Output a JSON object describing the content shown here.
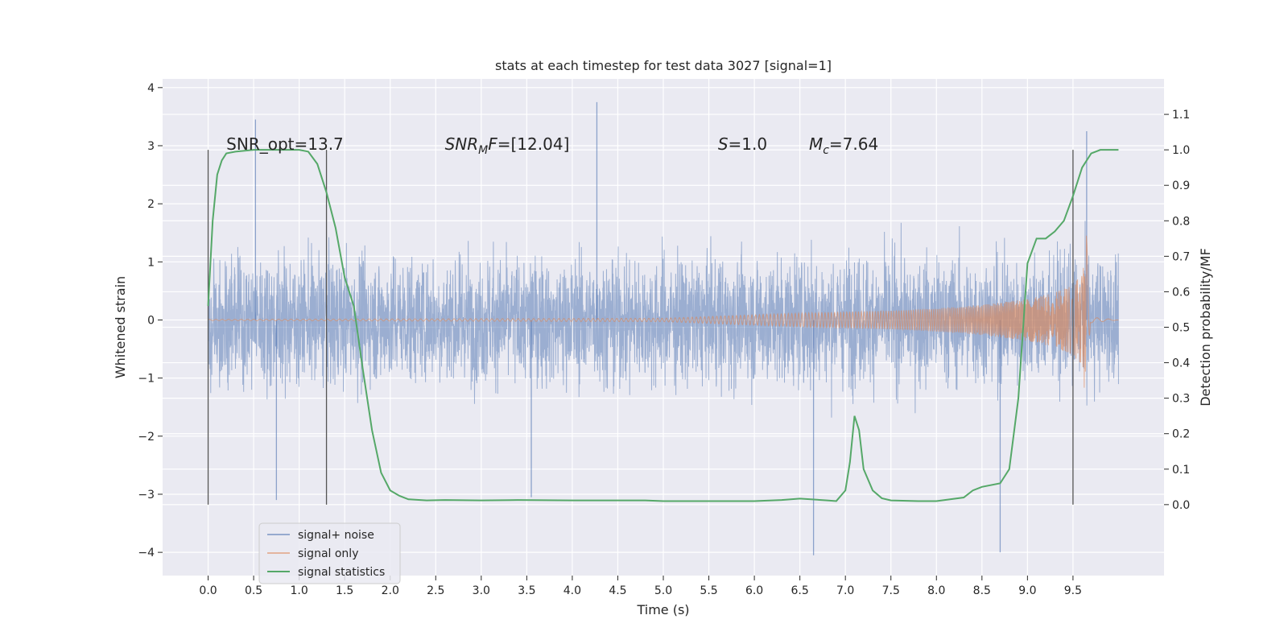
{
  "chart_data": {
    "type": "line",
    "title": "stats at each timestep for test data 3027 [signal=1]",
    "xlabel": "Time (s)",
    "ylabel": "Whitened strain",
    "ylabel_right": "Detection probability/MF",
    "xlim": [
      -0.5,
      10.5
    ],
    "ylim": [
      -4.4,
      4.15
    ],
    "ylim_right": [
      -0.2,
      1.2
    ],
    "x_ticks": [
      "0.0",
      "0.5",
      "1.0",
      "1.5",
      "2.0",
      "2.5",
      "3.0",
      "3.5",
      "4.0",
      "4.5",
      "5.0",
      "5.5",
      "6.0",
      "6.5",
      "7.0",
      "7.5",
      "8.0",
      "8.5",
      "9.0",
      "9.5"
    ],
    "y_ticks": [
      "−4",
      "−3",
      "−2",
      "−1",
      "0",
      "1",
      "2",
      "3",
      "4"
    ],
    "y_ticks_right": [
      "0.0",
      "0.1",
      "0.2",
      "0.3",
      "0.4",
      "0.5",
      "0.6",
      "0.7",
      "0.8",
      "0.9",
      "1.0",
      "1.1"
    ],
    "annotations": [
      {
        "text": "SNR_opt=13.7",
        "x": 0.2,
        "y": 3.0
      },
      {
        "text": "SNR_MF=[12.04]",
        "x": 2.6,
        "y": 3.0
      },
      {
        "text": "S=1.0",
        "x": 5.6,
        "y": 3.0
      },
      {
        "text": "M_c=7.64",
        "x": 6.6,
        "y": 3.0
      }
    ],
    "vertical_markers": [
      0.0,
      1.3,
      9.5
    ],
    "legend": {
      "position": "lower-left",
      "entries": [
        "signal+ noise",
        "signal only",
        "signal statistics"
      ]
    },
    "grid": true,
    "series": [
      {
        "name": "signal+ noise",
        "color": "#4c72b0",
        "kind": "noise",
        "x_range": [
          0.0,
          10.0
        ],
        "typical_amplitude": 1.6,
        "notable_peaks": [
          {
            "x": 0.52,
            "y": 3.45
          },
          {
            "x": 4.27,
            "y": 3.75
          },
          {
            "x": 9.65,
            "y": 3.25
          },
          {
            "x": 6.65,
            "y": -4.05
          },
          {
            "x": 8.7,
            "y": -4.0
          },
          {
            "x": 0.75,
            "y": -3.1
          },
          {
            "x": 3.55,
            "y": -3.05
          }
        ]
      },
      {
        "name": "signal only",
        "color": "#dd8452",
        "kind": "chirp",
        "x_range": [
          0.0,
          10.0
        ],
        "envelope": [
          [
            0.0,
            0.01
          ],
          [
            5.0,
            0.03
          ],
          [
            5.5,
            0.06
          ],
          [
            6.0,
            0.09
          ],
          [
            6.5,
            0.12
          ],
          [
            7.0,
            0.14
          ],
          [
            7.5,
            0.16
          ],
          [
            8.0,
            0.2
          ],
          [
            8.5,
            0.26
          ],
          [
            9.0,
            0.36
          ],
          [
            9.3,
            0.47
          ],
          [
            9.5,
            0.6
          ],
          [
            9.6,
            0.8
          ],
          [
            9.66,
            1.75
          ],
          [
            9.69,
            0.05
          ],
          [
            10.0,
            0.0
          ]
        ]
      },
      {
        "name": "signal statistics",
        "color": "#55a868",
        "axis": "right",
        "x": [
          0.0,
          0.05,
          0.1,
          0.15,
          0.2,
          0.3,
          0.5,
          0.8,
          1.0,
          1.1,
          1.2,
          1.3,
          1.4,
          1.5,
          1.6,
          1.7,
          1.8,
          1.9,
          2.0,
          2.1,
          2.2,
          2.4,
          2.6,
          3.0,
          3.4,
          4.0,
          4.5,
          4.8,
          5.0,
          5.5,
          6.0,
          6.3,
          6.5,
          6.8,
          6.9,
          7.0,
          7.05,
          7.1,
          7.15,
          7.2,
          7.3,
          7.4,
          7.5,
          7.8,
          8.0,
          8.3,
          8.4,
          8.5,
          8.7,
          8.8,
          8.9,
          9.0,
          9.1,
          9.2,
          9.3,
          9.4,
          9.5,
          9.6,
          9.7,
          9.8,
          9.9,
          10.0
        ],
        "y": [
          0.56,
          0.8,
          0.93,
          0.97,
          0.99,
          0.995,
          1.0,
          1.0,
          1.0,
          0.995,
          0.96,
          0.88,
          0.78,
          0.64,
          0.56,
          0.38,
          0.21,
          0.09,
          0.04,
          0.025,
          0.015,
          0.012,
          0.013,
          0.012,
          0.013,
          0.012,
          0.012,
          0.012,
          0.01,
          0.01,
          0.01,
          0.013,
          0.017,
          0.012,
          0.01,
          0.04,
          0.12,
          0.25,
          0.21,
          0.1,
          0.04,
          0.018,
          0.012,
          0.01,
          0.01,
          0.02,
          0.04,
          0.05,
          0.06,
          0.1,
          0.3,
          0.68,
          0.75,
          0.75,
          0.77,
          0.8,
          0.87,
          0.95,
          0.99,
          1.0,
          1.0,
          1.0
        ]
      }
    ]
  }
}
